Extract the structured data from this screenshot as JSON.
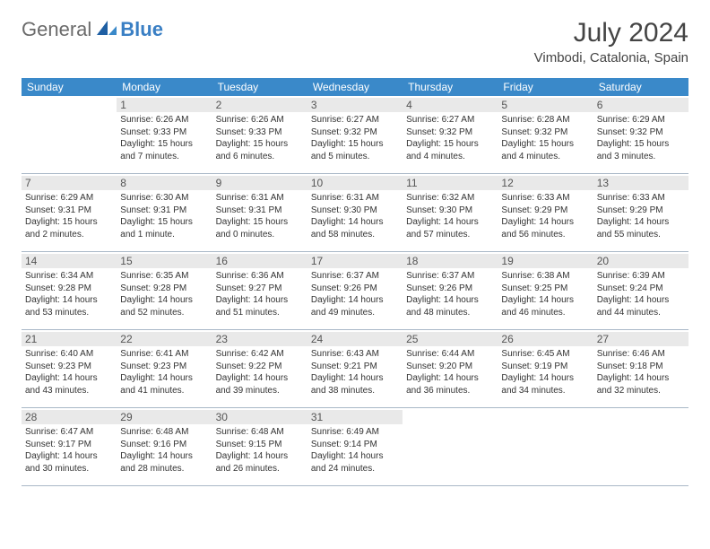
{
  "brand": {
    "part1": "General",
    "part2": "Blue"
  },
  "title": "July 2024",
  "location": "Vimbodi, Catalonia, Spain",
  "header_bg": "#3a89c9",
  "day_label_bg": "#e9e9e9",
  "divider_color": "#a9b8c7",
  "weekdays": [
    "Sunday",
    "Monday",
    "Tuesday",
    "Wednesday",
    "Thursday",
    "Friday",
    "Saturday"
  ],
  "weeks": [
    [
      {
        "n": "",
        "sunrise": "",
        "sunset": "",
        "daylight": ""
      },
      {
        "n": "1",
        "sunrise": "Sunrise: 6:26 AM",
        "sunset": "Sunset: 9:33 PM",
        "daylight": "Daylight: 15 hours and 7 minutes."
      },
      {
        "n": "2",
        "sunrise": "Sunrise: 6:26 AM",
        "sunset": "Sunset: 9:33 PM",
        "daylight": "Daylight: 15 hours and 6 minutes."
      },
      {
        "n": "3",
        "sunrise": "Sunrise: 6:27 AM",
        "sunset": "Sunset: 9:32 PM",
        "daylight": "Daylight: 15 hours and 5 minutes."
      },
      {
        "n": "4",
        "sunrise": "Sunrise: 6:27 AM",
        "sunset": "Sunset: 9:32 PM",
        "daylight": "Daylight: 15 hours and 4 minutes."
      },
      {
        "n": "5",
        "sunrise": "Sunrise: 6:28 AM",
        "sunset": "Sunset: 9:32 PM",
        "daylight": "Daylight: 15 hours and 4 minutes."
      },
      {
        "n": "6",
        "sunrise": "Sunrise: 6:29 AM",
        "sunset": "Sunset: 9:32 PM",
        "daylight": "Daylight: 15 hours and 3 minutes."
      }
    ],
    [
      {
        "n": "7",
        "sunrise": "Sunrise: 6:29 AM",
        "sunset": "Sunset: 9:31 PM",
        "daylight": "Daylight: 15 hours and 2 minutes."
      },
      {
        "n": "8",
        "sunrise": "Sunrise: 6:30 AM",
        "sunset": "Sunset: 9:31 PM",
        "daylight": "Daylight: 15 hours and 1 minute."
      },
      {
        "n": "9",
        "sunrise": "Sunrise: 6:31 AM",
        "sunset": "Sunset: 9:31 PM",
        "daylight": "Daylight: 15 hours and 0 minutes."
      },
      {
        "n": "10",
        "sunrise": "Sunrise: 6:31 AM",
        "sunset": "Sunset: 9:30 PM",
        "daylight": "Daylight: 14 hours and 58 minutes."
      },
      {
        "n": "11",
        "sunrise": "Sunrise: 6:32 AM",
        "sunset": "Sunset: 9:30 PM",
        "daylight": "Daylight: 14 hours and 57 minutes."
      },
      {
        "n": "12",
        "sunrise": "Sunrise: 6:33 AM",
        "sunset": "Sunset: 9:29 PM",
        "daylight": "Daylight: 14 hours and 56 minutes."
      },
      {
        "n": "13",
        "sunrise": "Sunrise: 6:33 AM",
        "sunset": "Sunset: 9:29 PM",
        "daylight": "Daylight: 14 hours and 55 minutes."
      }
    ],
    [
      {
        "n": "14",
        "sunrise": "Sunrise: 6:34 AM",
        "sunset": "Sunset: 9:28 PM",
        "daylight": "Daylight: 14 hours and 53 minutes."
      },
      {
        "n": "15",
        "sunrise": "Sunrise: 6:35 AM",
        "sunset": "Sunset: 9:28 PM",
        "daylight": "Daylight: 14 hours and 52 minutes."
      },
      {
        "n": "16",
        "sunrise": "Sunrise: 6:36 AM",
        "sunset": "Sunset: 9:27 PM",
        "daylight": "Daylight: 14 hours and 51 minutes."
      },
      {
        "n": "17",
        "sunrise": "Sunrise: 6:37 AM",
        "sunset": "Sunset: 9:26 PM",
        "daylight": "Daylight: 14 hours and 49 minutes."
      },
      {
        "n": "18",
        "sunrise": "Sunrise: 6:37 AM",
        "sunset": "Sunset: 9:26 PM",
        "daylight": "Daylight: 14 hours and 48 minutes."
      },
      {
        "n": "19",
        "sunrise": "Sunrise: 6:38 AM",
        "sunset": "Sunset: 9:25 PM",
        "daylight": "Daylight: 14 hours and 46 minutes."
      },
      {
        "n": "20",
        "sunrise": "Sunrise: 6:39 AM",
        "sunset": "Sunset: 9:24 PM",
        "daylight": "Daylight: 14 hours and 44 minutes."
      }
    ],
    [
      {
        "n": "21",
        "sunrise": "Sunrise: 6:40 AM",
        "sunset": "Sunset: 9:23 PM",
        "daylight": "Daylight: 14 hours and 43 minutes."
      },
      {
        "n": "22",
        "sunrise": "Sunrise: 6:41 AM",
        "sunset": "Sunset: 9:23 PM",
        "daylight": "Daylight: 14 hours and 41 minutes."
      },
      {
        "n": "23",
        "sunrise": "Sunrise: 6:42 AM",
        "sunset": "Sunset: 9:22 PM",
        "daylight": "Daylight: 14 hours and 39 minutes."
      },
      {
        "n": "24",
        "sunrise": "Sunrise: 6:43 AM",
        "sunset": "Sunset: 9:21 PM",
        "daylight": "Daylight: 14 hours and 38 minutes."
      },
      {
        "n": "25",
        "sunrise": "Sunrise: 6:44 AM",
        "sunset": "Sunset: 9:20 PM",
        "daylight": "Daylight: 14 hours and 36 minutes."
      },
      {
        "n": "26",
        "sunrise": "Sunrise: 6:45 AM",
        "sunset": "Sunset: 9:19 PM",
        "daylight": "Daylight: 14 hours and 34 minutes."
      },
      {
        "n": "27",
        "sunrise": "Sunrise: 6:46 AM",
        "sunset": "Sunset: 9:18 PM",
        "daylight": "Daylight: 14 hours and 32 minutes."
      }
    ],
    [
      {
        "n": "28",
        "sunrise": "Sunrise: 6:47 AM",
        "sunset": "Sunset: 9:17 PM",
        "daylight": "Daylight: 14 hours and 30 minutes."
      },
      {
        "n": "29",
        "sunrise": "Sunrise: 6:48 AM",
        "sunset": "Sunset: 9:16 PM",
        "daylight": "Daylight: 14 hours and 28 minutes."
      },
      {
        "n": "30",
        "sunrise": "Sunrise: 6:48 AM",
        "sunset": "Sunset: 9:15 PM",
        "daylight": "Daylight: 14 hours and 26 minutes."
      },
      {
        "n": "31",
        "sunrise": "Sunrise: 6:49 AM",
        "sunset": "Sunset: 9:14 PM",
        "daylight": "Daylight: 14 hours and 24 minutes."
      },
      {
        "n": "",
        "sunrise": "",
        "sunset": "",
        "daylight": ""
      },
      {
        "n": "",
        "sunrise": "",
        "sunset": "",
        "daylight": ""
      },
      {
        "n": "",
        "sunrise": "",
        "sunset": "",
        "daylight": ""
      }
    ]
  ]
}
